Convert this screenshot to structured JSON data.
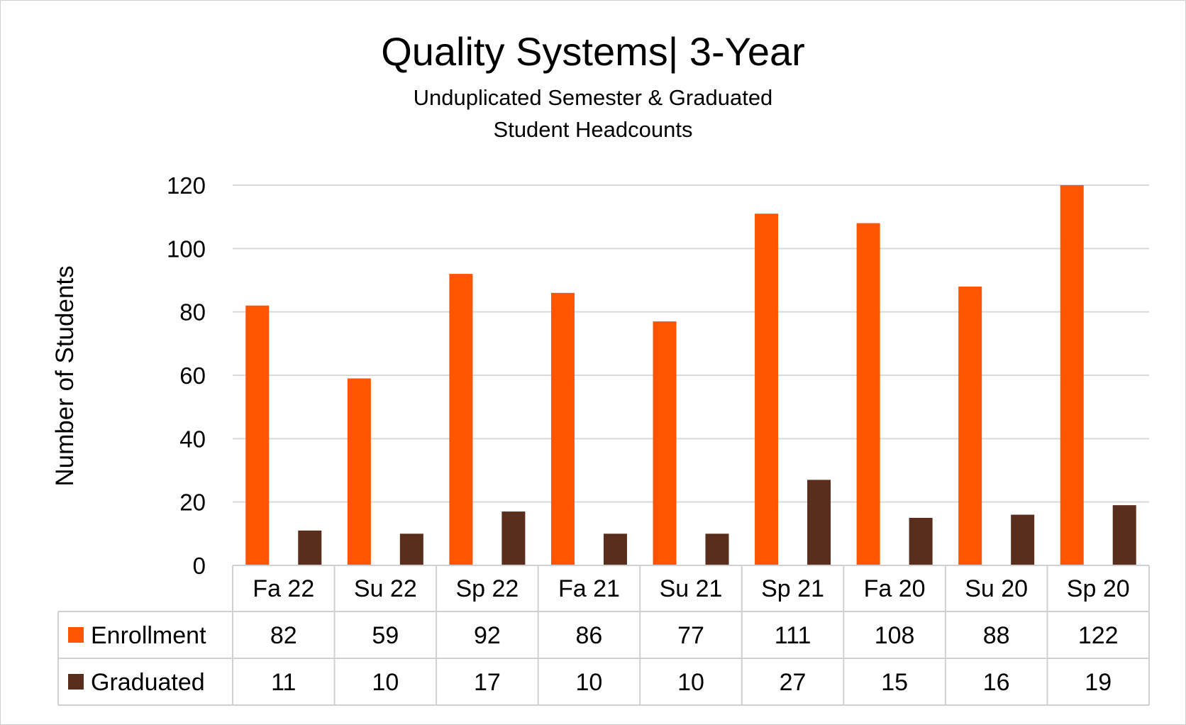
{
  "chart_data": {
    "type": "bar",
    "title": "Quality Systems| 3-Year",
    "subtitle_line1": "Unduplicated Semester & Graduated",
    "subtitle_line2": "Student Headcounts",
    "ylabel": "Number of Students",
    "xlabel": "",
    "ylim": [
      0,
      120
    ],
    "yticks": [
      0,
      20,
      40,
      60,
      80,
      100,
      120
    ],
    "grid": true,
    "legend": "data-table",
    "categories": [
      "Fa 22",
      "Su 22",
      "Sp 22",
      "Fa 21",
      "Su 21",
      "Sp 21",
      "Fa 20",
      "Su 20",
      "Sp 20"
    ],
    "series": [
      {
        "name": "Enrollment",
        "color": "#ff5500",
        "values": [
          82,
          59,
          92,
          86,
          77,
          111,
          108,
          88,
          122
        ]
      },
      {
        "name": "Graduated",
        "color": "#5a2e1c",
        "values": [
          11,
          10,
          17,
          10,
          10,
          27,
          15,
          16,
          19
        ]
      }
    ]
  }
}
